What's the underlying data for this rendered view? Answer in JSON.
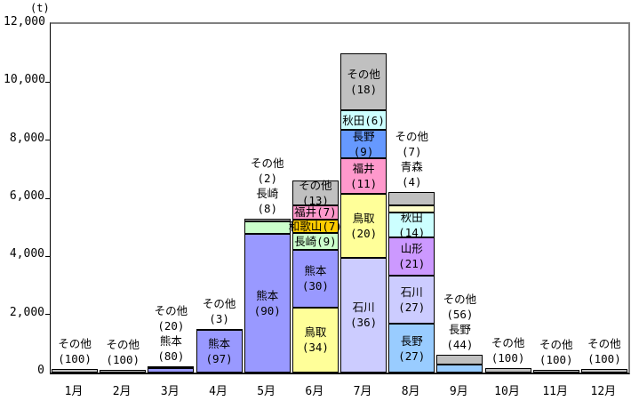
{
  "chart_data": {
    "type": "bar",
    "stacked": true,
    "unit_label": "(t)",
    "title": "",
    "xlabel": "",
    "ylabel": "",
    "ylim": [
      0,
      12000
    ],
    "grid": false,
    "legend": "none (labels on segments)",
    "y_ticks": [
      "0",
      "2,000",
      "4,000",
      "6,000",
      "8,000",
      "10,000",
      "12,000"
    ],
    "y_tick_values": [
      0,
      2000,
      4000,
      6000,
      8000,
      10000,
      12000
    ],
    "categories": [
      "1月",
      "2月",
      "3月",
      "4月",
      "5月",
      "6月",
      "7月",
      "8月",
      "9月",
      "10月",
      "11月",
      "12月"
    ],
    "series_colors": {
      "その他": "#C0C0C0",
      "熊本": "#9999FF",
      "長崎": "#CCFFCC",
      "鳥取": "#FFFF99",
      "福井": "#FF99CC",
      "和歌山": "#FFCC00",
      "秋田": "#CCFFFF",
      "長野_7月": "#6699FF",
      "長野_8月9月": "#99CCFF",
      "石川": "#CCCCFF",
      "青森": "#FFFFCC",
      "山形": "#CC99FF"
    },
    "bars": [
      {
        "month": "1月",
        "total_t": 120,
        "segments": [
          {
            "name": "その他",
            "share_pct": 100,
            "color": "#C0C0C0",
            "label_lines": [
              "その他",
              "(100)"
            ],
            "label_pos": "above"
          }
        ]
      },
      {
        "month": "2月",
        "total_t": 100,
        "segments": [
          {
            "name": "その他",
            "share_pct": 100,
            "color": "#C0C0C0",
            "label_lines": [
              "その他",
              "(100)"
            ],
            "label_pos": "above"
          }
        ]
      },
      {
        "month": "3月",
        "total_t": 200,
        "segments": [
          {
            "name": "その他",
            "share_pct": 20,
            "color": "#C0C0C0",
            "label_lines": [
              "その他",
              "(20)"
            ],
            "label_pos": "above"
          },
          {
            "name": "熊本",
            "share_pct": 80,
            "color": "#9999FF",
            "label_lines": [
              "熊本",
              "(80)"
            ],
            "label_pos": "above"
          }
        ]
      },
      {
        "month": "4月",
        "total_t": 1500,
        "segments": [
          {
            "name": "その他",
            "share_pct": 3,
            "color": "#C0C0C0",
            "label_lines": [
              "その他",
              "(3)"
            ],
            "label_pos": "above"
          },
          {
            "name": "熊本",
            "share_pct": 97,
            "color": "#9999FF",
            "label_lines": [
              "熊本",
              "(97)"
            ],
            "label_pos": "inside"
          }
        ]
      },
      {
        "month": "5月",
        "total_t": 5300,
        "segments": [
          {
            "name": "その他",
            "share_pct": 2,
            "color": "#C0C0C0",
            "label_lines": [
              "その他",
              "(2)"
            ],
            "label_pos": "above"
          },
          {
            "name": "長崎",
            "share_pct": 8,
            "color": "#CCFFCC",
            "label_lines": [
              "長崎",
              "(8)"
            ],
            "label_pos": "above"
          },
          {
            "name": "熊本",
            "share_pct": 90,
            "color": "#9999FF",
            "label_lines": [
              "熊本",
              "(90)"
            ],
            "label_pos": "inside"
          }
        ]
      },
      {
        "month": "6月",
        "total_t": 6600,
        "segments": [
          {
            "name": "その他",
            "share_pct": 13,
            "color": "#C0C0C0",
            "label_lines": [
              "その他",
              "(13)"
            ],
            "label_pos": "inside"
          },
          {
            "name": "福井",
            "share_pct": 7,
            "color": "#FF99CC",
            "label_lines": [
              "福井(7)"
            ],
            "label_pos": "inside"
          },
          {
            "name": "和歌山",
            "share_pct": 7,
            "color": "#FFCC00",
            "label_lines": [
              "和歌山(7)"
            ],
            "label_pos": "inside"
          },
          {
            "name": "長崎",
            "share_pct": 9,
            "color": "#CCFFCC",
            "label_lines": [
              "長崎(9)"
            ],
            "label_pos": "inside"
          },
          {
            "name": "熊本",
            "share_pct": 30,
            "color": "#9999FF",
            "label_lines": [
              "熊本",
              "(30)"
            ],
            "label_pos": "inside"
          },
          {
            "name": "鳥取",
            "share_pct": 34,
            "color": "#FFFF99",
            "label_lines": [
              "鳥取",
              "(34)"
            ],
            "label_pos": "inside"
          }
        ]
      },
      {
        "month": "7月",
        "total_t": 11000,
        "segments": [
          {
            "name": "その他",
            "share_pct": 18,
            "color": "#C0C0C0",
            "label_lines": [
              "その他",
              "(18)"
            ],
            "label_pos": "inside"
          },
          {
            "name": "秋田",
            "share_pct": 6,
            "color": "#CCFFFF",
            "label_lines": [
              "秋田(6)"
            ],
            "label_pos": "inside"
          },
          {
            "name": "長野",
            "share_pct": 9,
            "color": "#6699FF",
            "label_lines": [
              "長野",
              "(9)"
            ],
            "label_pos": "inside"
          },
          {
            "name": "福井",
            "share_pct": 11,
            "color": "#FF99CC",
            "label_lines": [
              "福井",
              "(11)"
            ],
            "label_pos": "inside"
          },
          {
            "name": "鳥取",
            "share_pct": 20,
            "color": "#FFFF99",
            "label_lines": [
              "鳥取",
              "(20)"
            ],
            "label_pos": "inside"
          },
          {
            "name": "石川",
            "share_pct": 36,
            "color": "#CCCCFF",
            "label_lines": [
              "石川",
              "(36)"
            ],
            "label_pos": "inside"
          }
        ]
      },
      {
        "month": "8月",
        "total_t": 6200,
        "segments": [
          {
            "name": "その他",
            "share_pct": 7,
            "color": "#C0C0C0",
            "label_lines": [
              "その他",
              "(7)"
            ],
            "label_pos": "above"
          },
          {
            "name": "青森",
            "share_pct": 4,
            "color": "#FFFFCC",
            "label_lines": [
              "青森",
              "(4)"
            ],
            "label_pos": "above"
          },
          {
            "name": "秋田",
            "share_pct": 14,
            "color": "#CCFFFF",
            "label_lines": [
              "秋田",
              "(14)"
            ],
            "label_pos": "inside"
          },
          {
            "name": "山形",
            "share_pct": 21,
            "color": "#CC99FF",
            "label_lines": [
              "山形",
              "(21)"
            ],
            "label_pos": "inside"
          },
          {
            "name": "石川",
            "share_pct": 27,
            "color": "#CCCCFF",
            "label_lines": [
              "石川",
              "(27)"
            ],
            "label_pos": "inside"
          },
          {
            "name": "長野",
            "share_pct": 27,
            "color": "#99CCFF",
            "label_lines": [
              "長野",
              "(27)"
            ],
            "label_pos": "inside"
          }
        ]
      },
      {
        "month": "9月",
        "total_t": 600,
        "segments": [
          {
            "name": "その他",
            "share_pct": 56,
            "color": "#C0C0C0",
            "label_lines": [
              "その他",
              "(56)"
            ],
            "label_pos": "above"
          },
          {
            "name": "長野",
            "share_pct": 44,
            "color": "#99CCFF",
            "label_lines": [
              "長野",
              "(44)"
            ],
            "label_pos": "above"
          }
        ]
      },
      {
        "month": "10月",
        "total_t": 150,
        "segments": [
          {
            "name": "その他",
            "share_pct": 100,
            "color": "#C0C0C0",
            "label_lines": [
              "その他",
              "(100)"
            ],
            "label_pos": "above"
          }
        ]
      },
      {
        "month": "11月",
        "total_t": 100,
        "segments": [
          {
            "name": "その他",
            "share_pct": 100,
            "color": "#C0C0C0",
            "label_lines": [
              "その他",
              "(100)"
            ],
            "label_pos": "above"
          }
        ]
      },
      {
        "month": "12月",
        "total_t": 130,
        "segments": [
          {
            "name": "その他",
            "share_pct": 100,
            "color": "#C0C0C0",
            "label_lines": [
              "その他",
              "(100)"
            ],
            "label_pos": "above"
          }
        ]
      }
    ]
  }
}
